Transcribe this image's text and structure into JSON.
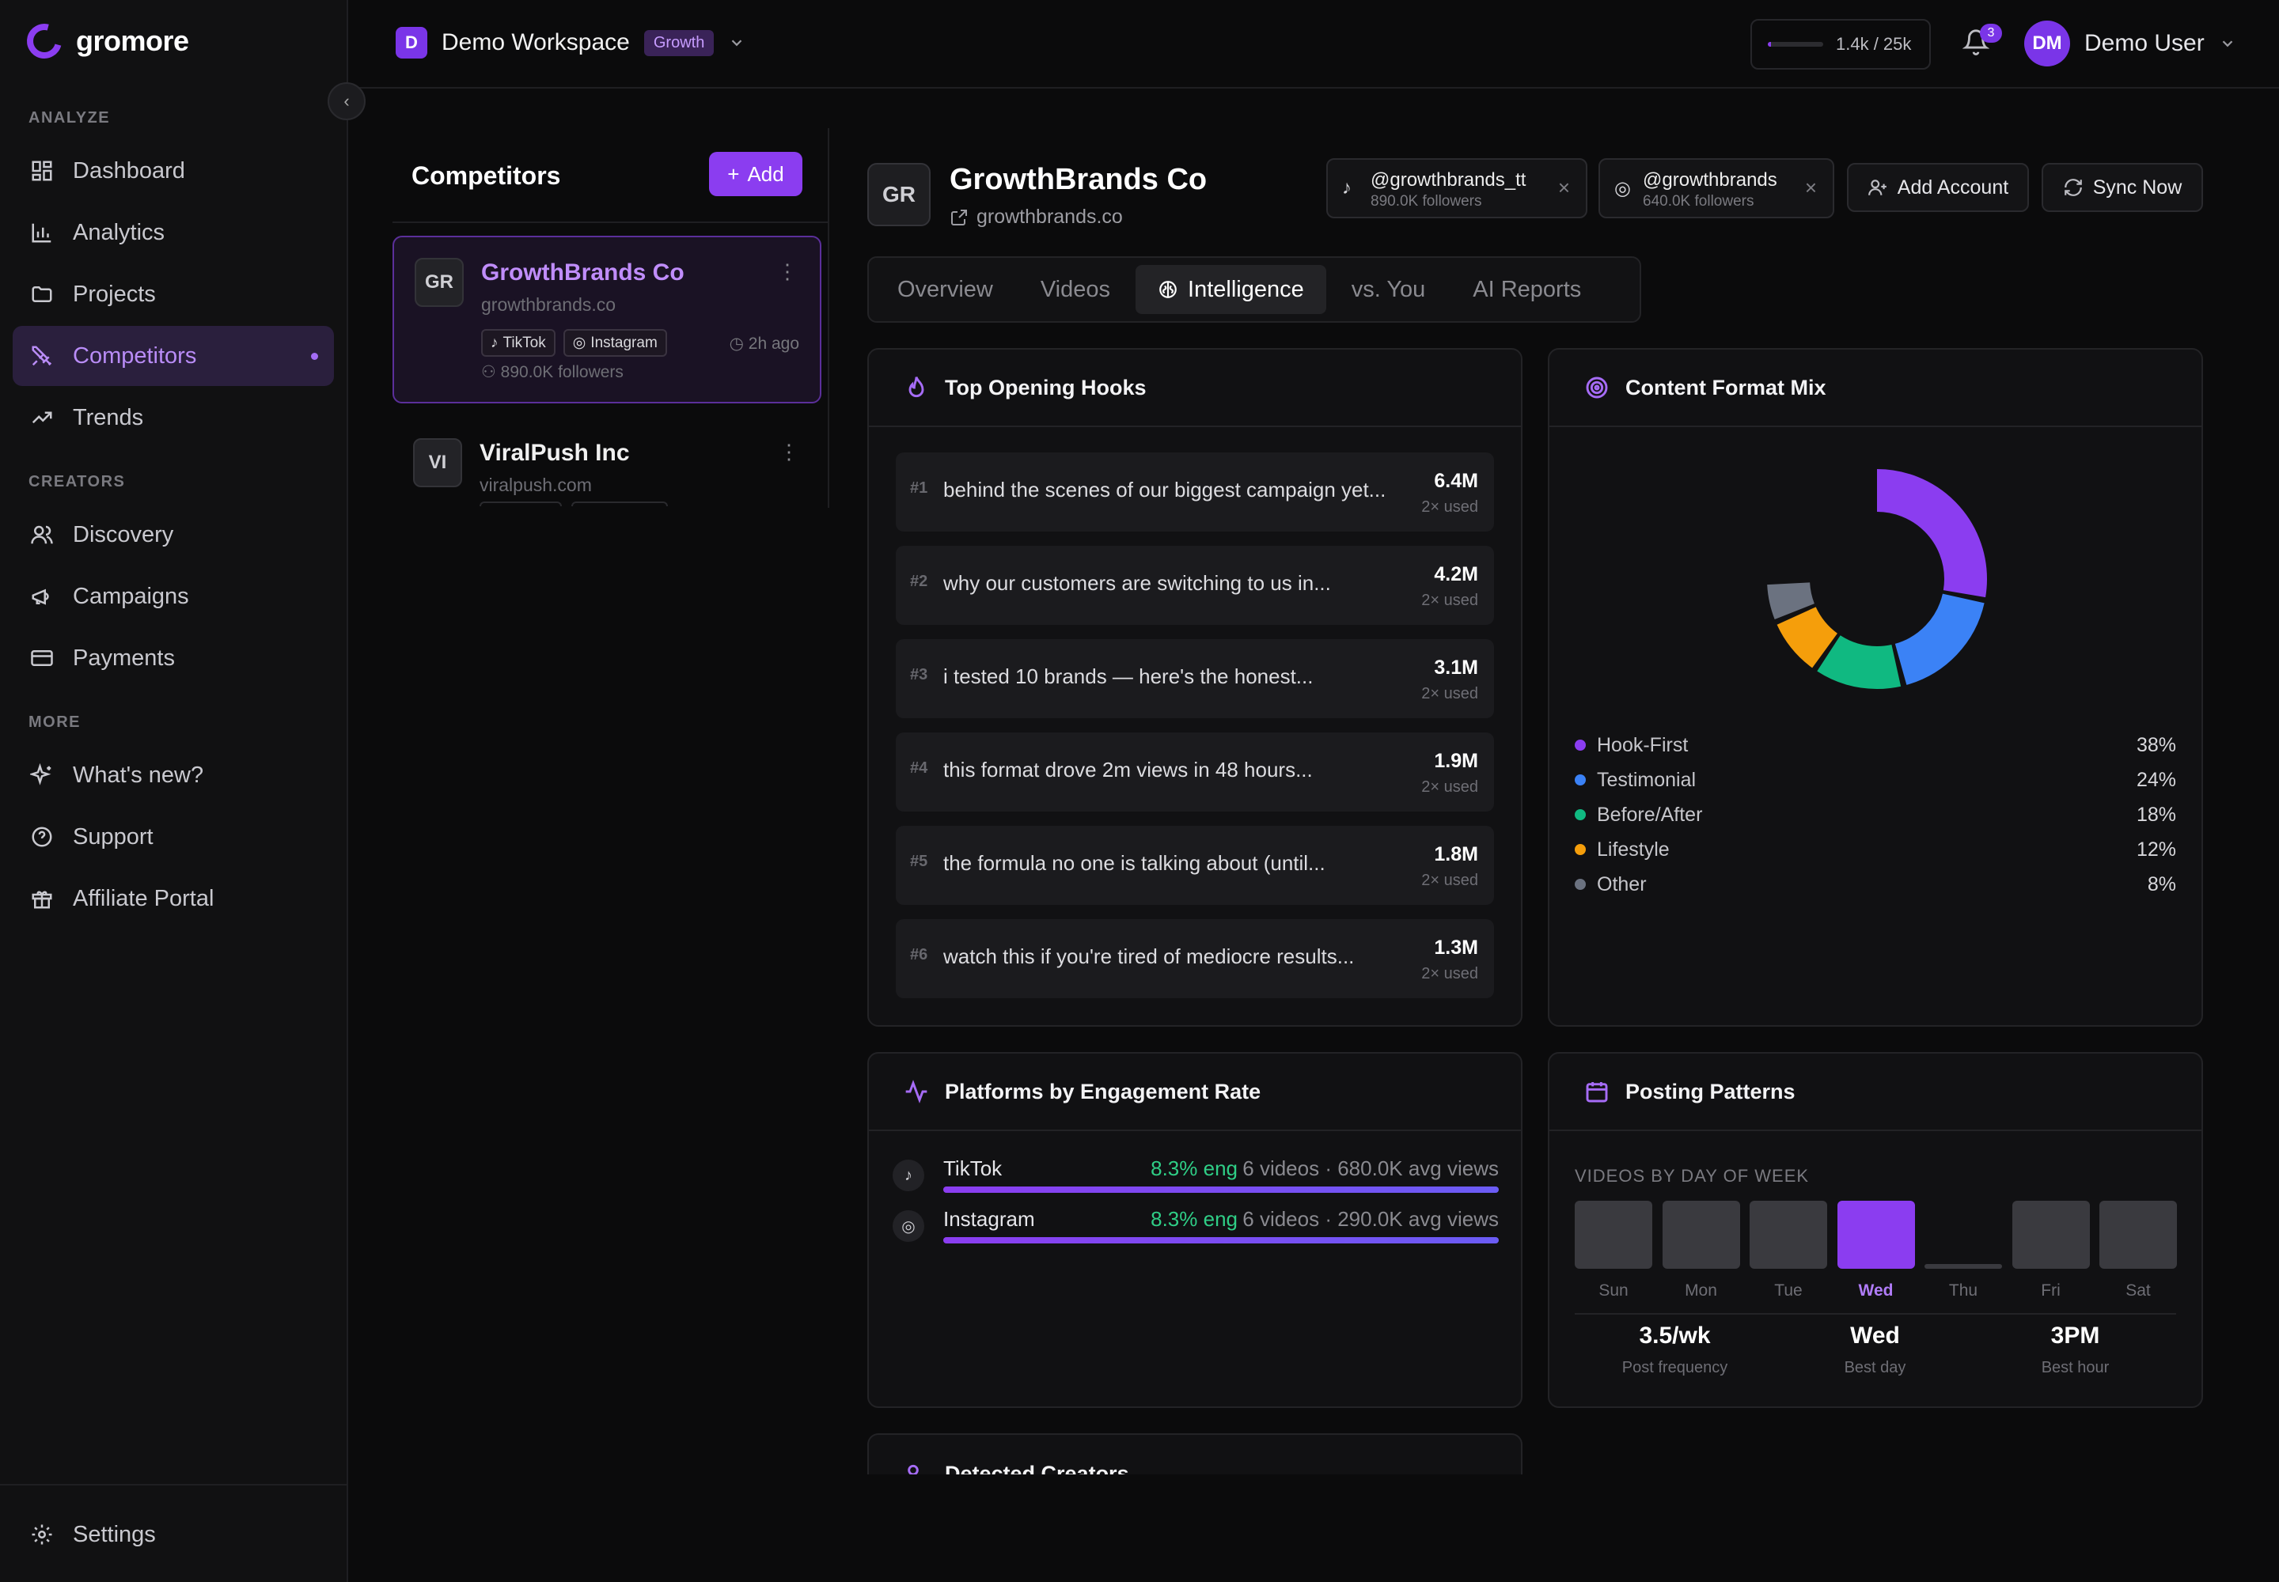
{
  "app": {
    "name": "gromore"
  },
  "sidebar": {
    "sections": [
      {
        "label": "ANALYZE",
        "items": [
          {
            "label": "Dashboard",
            "icon": "dashboard-icon"
          },
          {
            "label": "Analytics",
            "icon": "bar-chart-icon"
          },
          {
            "label": "Projects",
            "icon": "folder-icon"
          },
          {
            "label": "Competitors",
            "icon": "swords-icon",
            "active": true
          },
          {
            "label": "Trends",
            "icon": "trending-up-icon"
          }
        ]
      },
      {
        "label": "CREATORS",
        "items": [
          {
            "label": "Discovery",
            "icon": "users-icon"
          },
          {
            "label": "Campaigns",
            "icon": "megaphone-icon"
          },
          {
            "label": "Payments",
            "icon": "credit-card-icon"
          }
        ]
      },
      {
        "label": "MORE",
        "items": [
          {
            "label": "What's new?",
            "icon": "sparkles-icon"
          },
          {
            "label": "Support",
            "icon": "help-circle-icon"
          },
          {
            "label": "Affiliate Portal",
            "icon": "gift-icon"
          }
        ]
      }
    ],
    "settings": "Settings"
  },
  "topbar": {
    "workspace_initial": "D",
    "workspace_name": "Demo Workspace",
    "plan": "Growth",
    "usage_text": "1.4k / 25k",
    "usage_fraction": 0.056,
    "notification_count": "3",
    "user_initials": "DM",
    "user_name": "Demo User"
  },
  "competitors": {
    "title": "Competitors",
    "add_label": "Add",
    "items": [
      {
        "initials": "GR",
        "name": "GrowthBrands Co",
        "domain": "growthbrands.co",
        "tags": [
          "TikTok",
          "Instagram"
        ],
        "synced": "2h ago",
        "followers": "890.0K followers",
        "selected": true
      },
      {
        "initials": "VI",
        "name": "ViralPush Inc",
        "domain": "viralpush.com"
      }
    ]
  },
  "detail": {
    "initials": "GR",
    "name": "GrowthBrands Co",
    "domain": "growthbrands.co",
    "accounts": [
      {
        "platform": "tiktok",
        "handle": "@growthbrands_tt",
        "followers": "890.0K followers"
      },
      {
        "platform": "instagram",
        "handle": "@growthbrands",
        "followers": "640.0K followers"
      }
    ],
    "add_account": "Add Account",
    "sync_now": "Sync Now",
    "tabs": [
      "Overview",
      "Videos",
      "Intelligence",
      "vs. You",
      "AI Reports"
    ],
    "active_tab": "Intelligence"
  },
  "hooks": {
    "title": "Top Opening Hooks",
    "items": [
      {
        "rank": "#1",
        "text": "behind the scenes of our biggest campaign yet...",
        "views": "6.4M",
        "used": "2× used"
      },
      {
        "rank": "#2",
        "text": "why our customers are switching to us in...",
        "views": "4.2M",
        "used": "2× used"
      },
      {
        "rank": "#3",
        "text": "i tested 10 brands — here's the honest...",
        "views": "3.1M",
        "used": "2× used"
      },
      {
        "rank": "#4",
        "text": "this format drove 2m views in 48 hours...",
        "views": "1.9M",
        "used": "2× used"
      },
      {
        "rank": "#5",
        "text": "the formula no one is talking about (until...",
        "views": "1.8M",
        "used": "2× used"
      },
      {
        "rank": "#6",
        "text": "watch this if you're tired of mediocre results...",
        "views": "1.3M",
        "used": "2× used"
      }
    ]
  },
  "format_mix": {
    "title": "Content Format Mix",
    "chart_data": {
      "type": "pie",
      "categories": [
        "Hook-First",
        "Testimonial",
        "Before/After",
        "Lifestyle",
        "Other"
      ],
      "values": [
        38,
        24,
        18,
        12,
        8
      ],
      "labels": [
        "38%",
        "24%",
        "18%",
        "12%",
        "8%"
      ],
      "colors": [
        "#8b3df0",
        "#3b82f6",
        "#10b981",
        "#f59e0b",
        "#6b7280"
      ]
    }
  },
  "platforms": {
    "title": "Platforms by Engagement Rate",
    "items": [
      {
        "name": "TikTok",
        "engagement": "8.3% eng",
        "meta": "6 videos · 680.0K avg views",
        "fill": 1.0
      },
      {
        "name": "Instagram",
        "engagement": "8.3% eng",
        "meta": "6 videos · 290.0K avg views",
        "fill": 1.0
      }
    ]
  },
  "posting": {
    "title": "Posting Patterns",
    "subtitle": "VIDEOS BY DAY OF WEEK",
    "chart_data": {
      "type": "bar",
      "categories": [
        "Sun",
        "Mon",
        "Tue",
        "Wed",
        "Thu",
        "Fri",
        "Sat"
      ],
      "values": [
        1,
        1,
        1,
        1,
        0,
        1,
        1
      ],
      "highlight": "Wed"
    },
    "stats": [
      {
        "value": "3.5/wk",
        "label": "Post frequency"
      },
      {
        "value": "Wed",
        "label": "Best day"
      },
      {
        "value": "3PM",
        "label": "Best hour"
      }
    ]
  },
  "creators": {
    "title": "Detected Creators"
  }
}
